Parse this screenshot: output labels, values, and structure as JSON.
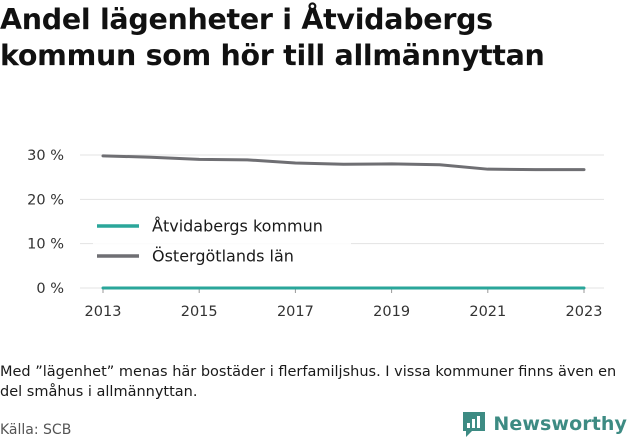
{
  "title": "Andel lägenheter i Åtvidabergs kommun som hör till allmännyttan",
  "note": "Med ”lägenhet” menas här bostäder i flerfamiljshus. I vissa kommuner finns även en del småhus i allmännyttan.",
  "source": "Källa: SCB",
  "brand": {
    "name": "Newsworthy",
    "icon": "newsworthy-logo-icon",
    "color": "#3d8b83"
  },
  "chart_data": {
    "type": "line",
    "x": [
      2013,
      2014,
      2015,
      2016,
      2017,
      2018,
      2019,
      2020,
      2021,
      2022,
      2023
    ],
    "series": [
      {
        "name": "Åtvidabergs kommun",
        "color": "#2aa69a",
        "values": [
          0,
          0,
          0,
          0,
          0,
          0,
          0,
          0,
          0,
          0,
          0
        ]
      },
      {
        "name": "Östergötlands län",
        "color": "#6f6f73",
        "values": [
          29.8,
          29.5,
          29.0,
          28.9,
          28.2,
          27.9,
          28.0,
          27.8,
          26.8,
          26.7,
          26.7
        ]
      }
    ],
    "xticks": [
      2013,
      2015,
      2017,
      2019,
      2021,
      2023
    ],
    "yticks": [
      {
        "value": 0,
        "label": "0 %"
      },
      {
        "value": 10,
        "label": "10 %"
      },
      {
        "value": 20,
        "label": "20 %"
      },
      {
        "value": 30,
        "label": "30 %"
      }
    ],
    "xlim": [
      2013,
      2023
    ],
    "ylim": [
      0,
      30
    ],
    "grid": "horizontal",
    "legend": "inside-bottom-left"
  }
}
